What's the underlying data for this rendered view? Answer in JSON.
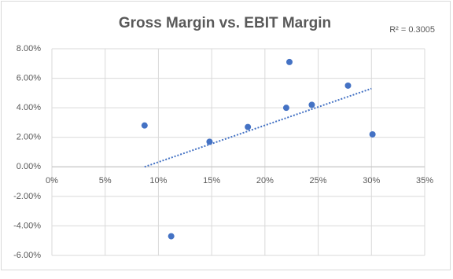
{
  "chart_data": {
    "type": "scatter",
    "title": "Gross Margin vs. EBIT Margin",
    "annotation": "R² = 0.3005",
    "x": [
      8.7,
      11.2,
      14.8,
      18.4,
      22.0,
      22.3,
      24.4,
      27.8,
      30.1
    ],
    "values": [
      2.8,
      -4.7,
      1.7,
      2.7,
      4.0,
      7.1,
      4.2,
      5.5,
      2.2
    ],
    "color": "#4472c4",
    "trendline": {
      "x": [
        8.7,
        30.0
      ],
      "y": [
        0,
        5.3
      ],
      "color": "#4472c4"
    },
    "xlim": [
      0,
      35
    ],
    "xticks": [
      {
        "value": 0,
        "label": "0%"
      },
      {
        "value": 5,
        "label": "5%"
      },
      {
        "value": 10,
        "label": "10%"
      },
      {
        "value": 15,
        "label": "15%"
      },
      {
        "value": 20,
        "label": "20%"
      },
      {
        "value": 25,
        "label": "25%"
      },
      {
        "value": 30,
        "label": "30%"
      },
      {
        "value": 35,
        "label": "35%"
      }
    ],
    "ylim": [
      -6,
      8
    ],
    "yticks": [
      {
        "value": -6,
        "label": "-6.00%"
      },
      {
        "value": -4,
        "label": "-4.00%"
      },
      {
        "value": -2,
        "label": "-2.00%"
      },
      {
        "value": 0,
        "label": "0.00%"
      },
      {
        "value": 2,
        "label": "2.00%"
      },
      {
        "value": 4,
        "label": "4.00%"
      },
      {
        "value": 6,
        "label": "6.00%"
      },
      {
        "value": 8,
        "label": "8.00%"
      }
    ],
    "grid": true
  }
}
